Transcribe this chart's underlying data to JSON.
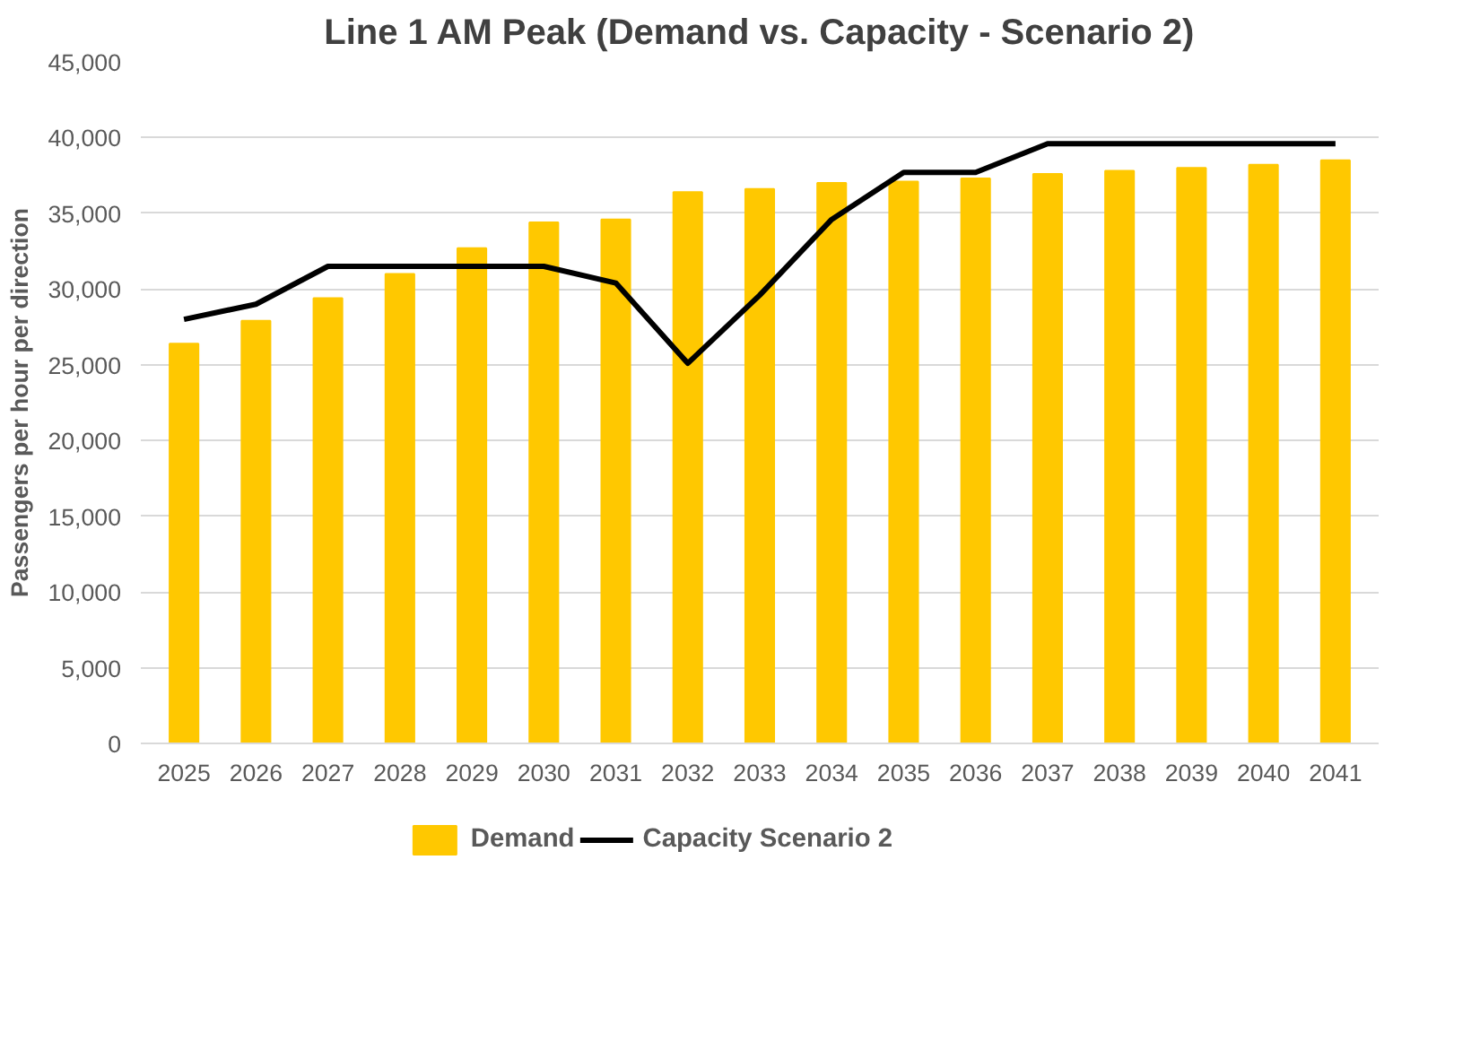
{
  "chart_data": {
    "type": "bar",
    "title": "Line 1 AM Peak (Demand vs. Capacity - Scenario 2)",
    "ylabel": "Passengers per hour per direction",
    "categories": [
      "2025",
      "2026",
      "2027",
      "2028",
      "2029",
      "2030",
      "2031",
      "2032",
      "2033",
      "2034",
      "2035",
      "2036",
      "2037",
      "2038",
      "2039",
      "2040",
      "2041"
    ],
    "series": [
      {
        "name": "Demand",
        "color": "#ffc800",
        "values": [
          26400,
          27900,
          29400,
          31000,
          32700,
          34400,
          34600,
          36400,
          36600,
          37000,
          37100,
          37300,
          37600,
          37800,
          38000,
          38200,
          38500
        ]
      },
      {
        "name": "Capacity Scenario 2",
        "type": "line",
        "color": "#000000",
        "values": [
          28000,
          29000,
          31500,
          31500,
          31500,
          31500,
          30400,
          25100,
          29600,
          34600,
          37700,
          37700,
          39600,
          39600,
          39600,
          39600,
          39600
        ]
      }
    ],
    "ylim": [
      0,
      45000
    ],
    "yticks": [
      {
        "value": 0,
        "label": "0"
      },
      {
        "value": 5000,
        "label": "5,000"
      },
      {
        "value": 10000,
        "label": "10,000"
      },
      {
        "value": 15000,
        "label": "15,000"
      },
      {
        "value": 20000,
        "label": "20,000"
      },
      {
        "value": 25000,
        "label": "25,000"
      },
      {
        "value": 30000,
        "label": "30,000"
      },
      {
        "value": 35000,
        "label": "35,000"
      },
      {
        "value": 40000,
        "label": "40,000"
      },
      {
        "value": 45000,
        "label": "45,000"
      }
    ],
    "grid": "y",
    "legend": "bottom",
    "line_style": "solid"
  }
}
